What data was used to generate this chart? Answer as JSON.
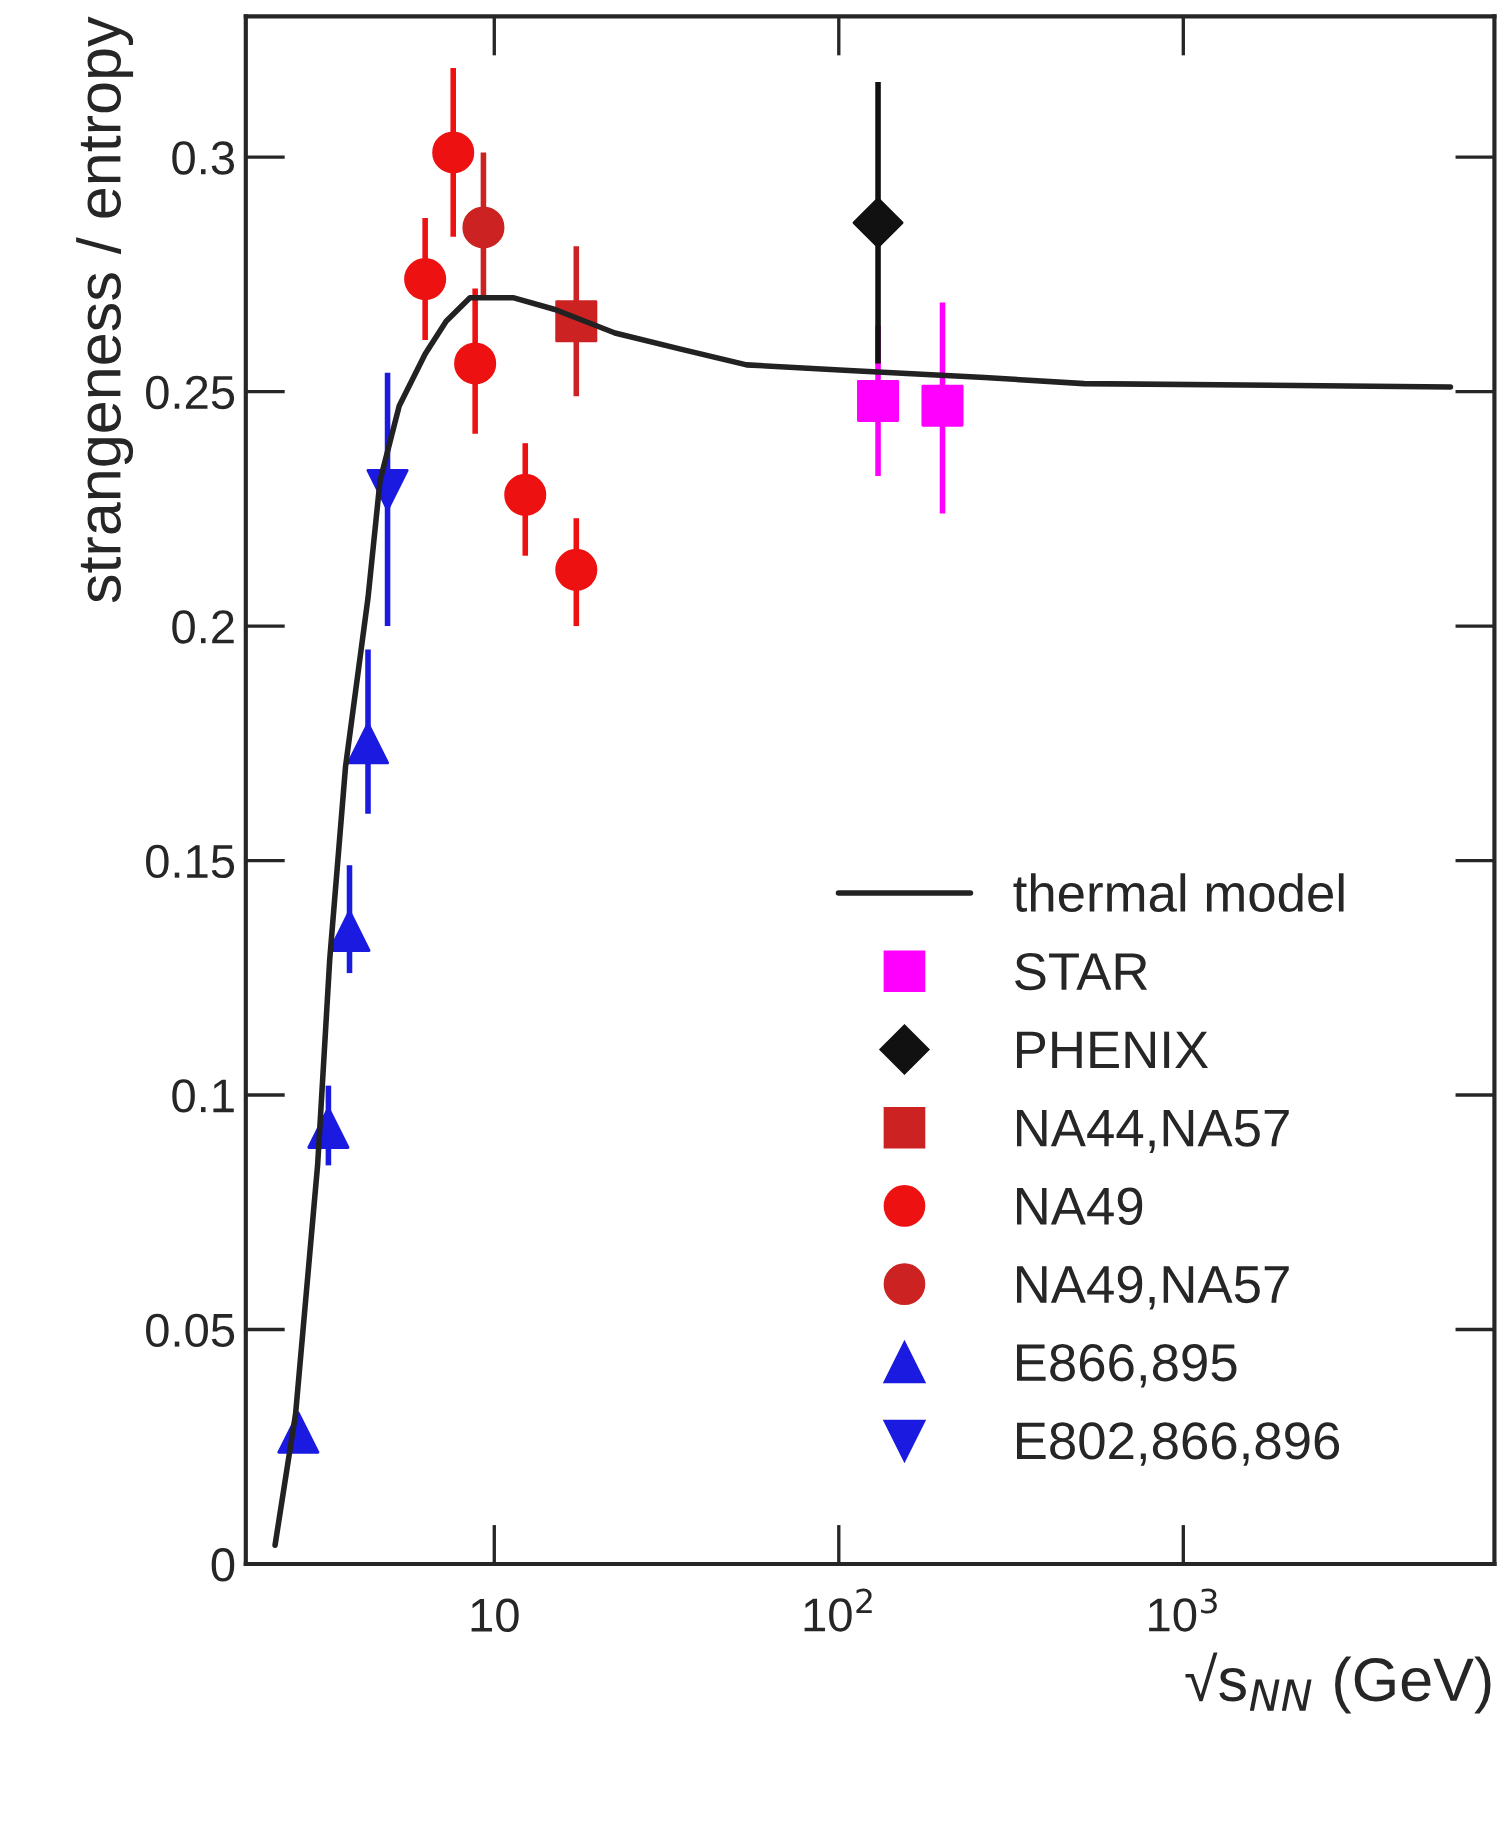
{
  "chart_data": {
    "type": "scatter",
    "xlabel": "√s$_{NN}$ (GeV)",
    "ylabel": "strangeness / entropy",
    "log": "x",
    "xlim": [
      1.9,
      8000
    ],
    "xticks": [
      {
        "value": 10,
        "label": "10"
      },
      {
        "value": 100,
        "label": "10$^{2}$"
      },
      {
        "value": 1000,
        "label": "10$^{3}$"
      }
    ],
    "ylim": [
      0,
      0.33
    ],
    "yticks": [
      0,
      0.05,
      0.1,
      0.15,
      0.2,
      0.25,
      0.3
    ],
    "grid": false,
    "legend": "bottom right",
    "series": [
      {
        "name": "thermal model",
        "type": "line",
        "color": "#222222",
        "marker": "none",
        "line_style": "solid",
        "x": [
          2.31,
          2.65,
          3.07,
          3.33,
          3.7,
          4.3,
          4.66,
          5.3,
          6.3,
          7.25,
          8.5,
          11.4,
          15,
          22.4,
          35,
          54,
          107,
          265,
          515,
          5960
        ],
        "values": [
          0.004,
          0.032,
          0.085,
          0.129,
          0.17,
          0.206,
          0.231,
          0.247,
          0.258,
          0.265,
          0.27,
          0.27,
          0.2675,
          0.2625,
          0.259,
          0.2557,
          0.2545,
          0.253,
          0.2517,
          0.251
        ]
      },
      {
        "name": "STAR",
        "color": "#ff00ff",
        "marker": "square",
        "x": [
          130,
          200
        ],
        "values": [
          0.248,
          0.247
        ],
        "errors": [
          [
            0.232,
            0.264
          ],
          [
            0.224,
            0.269
          ]
        ]
      },
      {
        "name": "PHENIX",
        "color": "#111111",
        "marker": "diamond",
        "x": [
          130
        ],
        "values": [
          0.286
        ],
        "errors": [
          [
            0.256,
            0.316
          ]
        ]
      },
      {
        "name": "NA44,NA57",
        "color": "#cc2222",
        "marker": "square",
        "x": [
          17.3
        ],
        "values": [
          0.265
        ],
        "errors": [
          [
            0.249,
            0.281
          ]
        ]
      },
      {
        "name": "NA49",
        "color": "#ee1111",
        "marker": "circle",
        "x": [
          6.3,
          7.6,
          8.8,
          12.3,
          17.3
        ],
        "values": [
          0.274,
          0.301,
          0.256,
          0.228,
          0.212
        ],
        "errors": [
          [
            0.261,
            0.287
          ],
          [
            0.283,
            0.319
          ],
          [
            0.241,
            0.272
          ],
          [
            0.215,
            0.239
          ],
          [
            0.2,
            0.223
          ]
        ]
      },
      {
        "name": "NA49,NA57",
        "color": "#cc2222",
        "marker": "circle",
        "x": [
          9.3
        ],
        "values": [
          0.285
        ],
        "errors": [
          [
            0.27,
            0.301
          ]
        ]
      },
      {
        "name": "E866,895",
        "color": "#1a1ae0",
        "marker": "triangle",
        "x": [
          2.7,
          3.3,
          3.8,
          4.3
        ],
        "values": [
          0.028,
          0.093,
          0.135,
          0.175
        ],
        "errors": [
          null,
          [
            0.085,
            0.102
          ],
          [
            0.126,
            0.149
          ],
          [
            0.16,
            0.195
          ]
        ]
      },
      {
        "name": "E802,866,896",
        "color": "#1a1ae0",
        "marker": "triangle_down",
        "x": [
          4.9
        ],
        "values": [
          0.229
        ],
        "errors": [
          [
            0.2,
            0.254
          ]
        ]
      }
    ]
  }
}
